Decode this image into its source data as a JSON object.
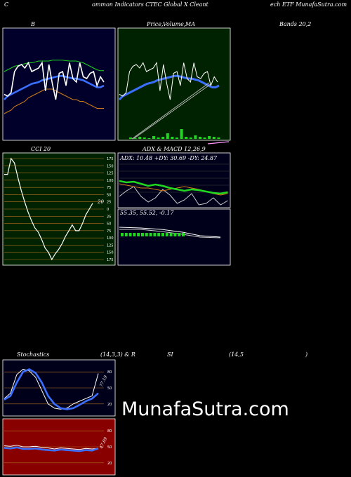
{
  "header": {
    "left": "C",
    "mid": "ommon Indicators CTEC Global X Cleant",
    "right": "ech ETF MunafaSutra.com"
  },
  "titles": {
    "bands_b": "B",
    "price_a": "Price,",
    "price_b": "Volume,",
    "price_c": "MA",
    "bands_right": "Bands 20,2",
    "cci": "CCI 20",
    "adx_macd": "ADX  & MACD 12,26,9",
    "stoch_a": "Stochastics",
    "stoch_b": "(14,3,3) & R",
    "stoch_c": "SI",
    "stoch_d": "(14,5",
    "stoch_e": ")"
  },
  "cci_value": "20",
  "adx_text": "ADX: 10.48  +DY: 30.69 -DY: 24.87",
  "macd_text": "55.35,  55.52,  -0.17",
  "stoch_value": "77.19",
  "rsi_value": "47.09",
  "watermark": "MunafaSutra.com",
  "colors": {
    "bands_bg": "#00002a",
    "price_bg": "#002200",
    "cci_bg": "#002200",
    "adx_bg": "#00001a",
    "stoch_bg": "#00001a",
    "rsi_bg": "#880000",
    "grid_orange": "#b07020",
    "blue": "#3b6fff",
    "green": "#1fd81f",
    "orange": "#d07a18"
  },
  "chart_data": [
    {
      "type": "line",
      "name": "bollinger-bands",
      "series": [
        {
          "values": [
            -1.9,
            -2.0,
            -1.8,
            -0.6,
            -0.3,
            -0.2,
            -0.4,
            -0.1,
            -0.6,
            -0.5,
            -0.4,
            -0.1,
            -1.7,
            -0.2,
            -1.3,
            -2.2,
            -0.7,
            -0.6,
            -1.4,
            -0.1,
            -1.0,
            -1.2,
            -0.1,
            -0.9,
            -1.0,
            -0.7,
            -0.6,
            -1.4,
            -0.9,
            -1.2
          ]
        },
        {
          "values": [
            -2.2,
            -2.0,
            -1.9,
            -1.8,
            -1.7,
            -1.6,
            -1.5,
            -1.4,
            -1.3,
            -1.25,
            -1.2,
            -1.1,
            -1.05,
            -1.0,
            -0.95,
            -0.9,
            -0.85,
            -0.85,
            -0.9,
            -0.95,
            -1.0,
            -1.0,
            -1.05,
            -1.1,
            -1.2,
            -1.3,
            -1.4,
            -1.5,
            -1.5,
            -1.4
          ]
        },
        {
          "values": [
            -0.6,
            -0.5,
            -0.4,
            -0.3,
            -0.25,
            -0.2,
            -0.15,
            -0.1,
            -0.1,
            -0.05,
            0.0,
            0.0,
            0.0,
            0.0,
            0.05,
            0.05,
            0.05,
            0.05,
            0.02,
            0.0,
            0.0,
            0.0,
            -0.05,
            -0.1,
            -0.2,
            -0.3,
            -0.4,
            -0.5,
            -0.55,
            -0.55
          ]
        },
        {
          "values": [
            -3.0,
            -2.9,
            -2.8,
            -2.6,
            -2.5,
            -2.4,
            -2.3,
            -2.1,
            -2.0,
            -1.9,
            -1.8,
            -1.7,
            -1.6,
            -1.6,
            -1.6,
            -1.7,
            -1.8,
            -1.9,
            -2.0,
            -2.1,
            -2.2,
            -2.2,
            -2.3,
            -2.3,
            -2.4,
            -2.5,
            -2.6,
            -2.7,
            -2.7,
            -2.7
          ]
        }
      ]
    },
    {
      "type": "line",
      "name": "cci",
      "ylim": [
        -175,
        175
      ],
      "yticks": [
        175,
        150,
        125,
        100,
        75,
        50,
        25,
        0,
        -25,
        -50,
        -75,
        -100,
        -125,
        -150,
        -175
      ],
      "ytick_labels": [
        "175",
        "150",
        "125",
        "100",
        "75",
        "50",
        "25",
        "0",
        "25",
        "50",
        "75",
        "100",
        "125",
        "150",
        "175"
      ],
      "values": [
        120,
        120,
        175,
        160,
        110,
        65,
        25,
        -10,
        -40,
        -65,
        -80,
        -105,
        -135,
        -150,
        -175,
        -155,
        -140,
        -120,
        -95,
        -75,
        -55,
        -75,
        -75,
        -50,
        -20,
        0,
        20
      ]
    },
    {
      "type": "line",
      "name": "stochastics",
      "yticks": [
        80,
        50,
        20
      ],
      "series": [
        {
          "values": [
            30,
            40,
            75,
            85,
            82,
            70,
            45,
            20,
            12,
            10,
            12,
            20,
            25,
            30,
            35,
            77
          ]
        },
        {
          "values": [
            28,
            35,
            60,
            80,
            85,
            78,
            60,
            35,
            20,
            12,
            10,
            12,
            18,
            25,
            30,
            40
          ]
        }
      ]
    },
    {
      "type": "line",
      "name": "rsi",
      "yticks": [
        80,
        50,
        20
      ],
      "series": [
        {
          "values": [
            52,
            51,
            53,
            50,
            50,
            51,
            49,
            48,
            46,
            48,
            47,
            46,
            45,
            47,
            46,
            47
          ]
        },
        {
          "values": [
            48,
            47,
            49,
            46,
            46,
            47,
            45,
            44,
            43,
            45,
            44,
            43,
            42,
            44,
            43,
            47
          ]
        }
      ]
    }
  ]
}
